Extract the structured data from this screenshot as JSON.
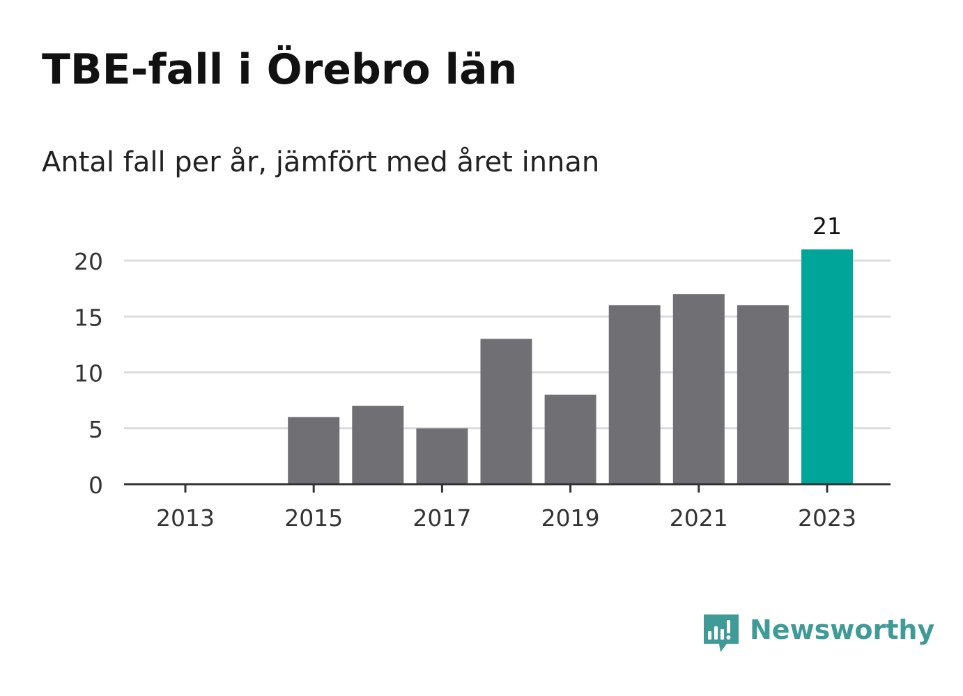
{
  "title": "TBE-fall i Örebro län",
  "subtitle": "Antal fall per år, jämfört med året innan",
  "brand": {
    "name": "Newsworthy",
    "color": "#3f9b98",
    "icon": "bar-chart-speech-bubble-icon"
  },
  "colors": {
    "bar": "#706f74",
    "highlight": "#00a59a",
    "grid": "#dcdcdc",
    "axis": "#333333"
  },
  "chart_data": {
    "type": "bar",
    "title": "TBE-fall i Örebro län",
    "subtitle": "Antal fall per år, jämfört med året innan",
    "xlabel": "",
    "ylabel": "",
    "categories": [
      "2013",
      "2014",
      "2015",
      "2016",
      "2017",
      "2018",
      "2019",
      "2020",
      "2021",
      "2022",
      "2023"
    ],
    "values": [
      0,
      0,
      6,
      7,
      5,
      13,
      8,
      16,
      17,
      16,
      21
    ],
    "highlight_index": 10,
    "data_labels": [
      {
        "category": "2023",
        "text": "21"
      }
    ],
    "x_ticks": [
      "2013",
      "2015",
      "2017",
      "2019",
      "2021",
      "2023"
    ],
    "y_ticks": [
      "0",
      "5",
      "10",
      "15",
      "20"
    ],
    "ylim": [
      0,
      21
    ],
    "grid": "horizontal",
    "legend": "none"
  }
}
